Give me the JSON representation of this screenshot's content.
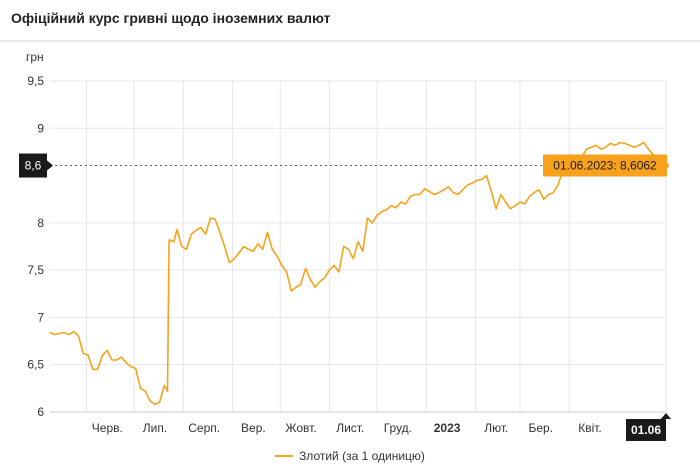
{
  "page": {
    "title": "Офіційний курс гривні щодо іноземних валют"
  },
  "chart_data": {
    "type": "line",
    "ylabel": "грн",
    "ylim": [
      6,
      9.5
    ],
    "y_ticks": [
      {
        "value": 6,
        "label": "6"
      },
      {
        "value": 6.5,
        "label": "6,5"
      },
      {
        "value": 7,
        "label": "7"
      },
      {
        "value": 7.5,
        "label": "7,5"
      },
      {
        "value": 8,
        "label": "8"
      },
      {
        "value": 9,
        "label": "9"
      },
      {
        "value": 9.5,
        "label": "9,5"
      }
    ],
    "x_range": [
      "2022-05-09",
      "2023-06-01"
    ],
    "x_ticks": [
      {
        "date": "2022-06-01",
        "label": "Черв."
      },
      {
        "date": "2022-07-01",
        "label": "Лип."
      },
      {
        "date": "2022-08-01",
        "label": "Серп."
      },
      {
        "date": "2022-09-01",
        "label": "Вер."
      },
      {
        "date": "2022-10-01",
        "label": "Жовт."
      },
      {
        "date": "2022-11-01",
        "label": "Лист."
      },
      {
        "date": "2022-12-01",
        "label": "Груд."
      },
      {
        "date": "2023-01-01",
        "label": "2023",
        "bold": true
      },
      {
        "date": "2023-02-01",
        "label": "Лют."
      },
      {
        "date": "2023-03-01",
        "label": "Бер."
      },
      {
        "date": "2023-04-01",
        "label": "Квіт."
      }
    ],
    "x_end_label": "01.06",
    "y_marker": {
      "value": 8.6062,
      "label": "8,6"
    },
    "tooltip": "01.06.2023: 8,6062",
    "colors": {
      "line": "#f7a21a",
      "marker_bg": "#1a1a1a",
      "tooltip_bg": "#f7a21a",
      "grid": "#e6e6e6"
    },
    "grid": true,
    "legend_position": "bottom-center",
    "series": [
      {
        "name": "Злотий (за 1 одиницю)",
        "points": [
          [
            "2022-05-09",
            6.84
          ],
          [
            "2022-05-12",
            6.82
          ],
          [
            "2022-05-15",
            6.83
          ],
          [
            "2022-05-18",
            6.84
          ],
          [
            "2022-05-21",
            6.82
          ],
          [
            "2022-05-24",
            6.85
          ],
          [
            "2022-05-27",
            6.8
          ],
          [
            "2022-05-30",
            6.62
          ],
          [
            "2022-06-02",
            6.6
          ],
          [
            "2022-06-05",
            6.45
          ],
          [
            "2022-06-08",
            6.45
          ],
          [
            "2022-06-11",
            6.6
          ],
          [
            "2022-06-14",
            6.65
          ],
          [
            "2022-06-17",
            6.55
          ],
          [
            "2022-06-20",
            6.55
          ],
          [
            "2022-06-23",
            6.58
          ],
          [
            "2022-06-26",
            6.52
          ],
          [
            "2022-06-29",
            6.48
          ],
          [
            "2022-07-02",
            6.46
          ],
          [
            "2022-07-05",
            6.25
          ],
          [
            "2022-07-08",
            6.22
          ],
          [
            "2022-07-11",
            6.12
          ],
          [
            "2022-07-14",
            6.08
          ],
          [
            "2022-07-17",
            6.1
          ],
          [
            "2022-07-20",
            6.28
          ],
          [
            "2022-07-22",
            6.22
          ],
          [
            "2022-07-23",
            7.82
          ],
          [
            "2022-07-26",
            7.8
          ],
          [
            "2022-07-28",
            7.93
          ],
          [
            "2022-07-31",
            7.75
          ],
          [
            "2022-08-03",
            7.72
          ],
          [
            "2022-08-06",
            7.88
          ],
          [
            "2022-08-09",
            7.92
          ],
          [
            "2022-08-12",
            7.95
          ],
          [
            "2022-08-15",
            7.88
          ],
          [
            "2022-08-18",
            8.05
          ],
          [
            "2022-08-21",
            8.04
          ],
          [
            "2022-08-24",
            7.9
          ],
          [
            "2022-08-27",
            7.75
          ],
          [
            "2022-08-30",
            7.58
          ],
          [
            "2022-09-02",
            7.62
          ],
          [
            "2022-09-05",
            7.68
          ],
          [
            "2022-09-08",
            7.75
          ],
          [
            "2022-09-11",
            7.72
          ],
          [
            "2022-09-14",
            7.7
          ],
          [
            "2022-09-17",
            7.78
          ],
          [
            "2022-09-20",
            7.72
          ],
          [
            "2022-09-23",
            7.9
          ],
          [
            "2022-09-26",
            7.72
          ],
          [
            "2022-09-29",
            7.65
          ],
          [
            "2022-10-02",
            7.55
          ],
          [
            "2022-10-05",
            7.48
          ],
          [
            "2022-10-08",
            7.28
          ],
          [
            "2022-10-11",
            7.32
          ],
          [
            "2022-10-14",
            7.35
          ],
          [
            "2022-10-17",
            7.52
          ],
          [
            "2022-10-20",
            7.4
          ],
          [
            "2022-10-23",
            7.32
          ],
          [
            "2022-10-26",
            7.38
          ],
          [
            "2022-10-29",
            7.42
          ],
          [
            "2022-11-01",
            7.5
          ],
          [
            "2022-11-04",
            7.55
          ],
          [
            "2022-11-07",
            7.48
          ],
          [
            "2022-11-10",
            7.75
          ],
          [
            "2022-11-13",
            7.72
          ],
          [
            "2022-11-16",
            7.62
          ],
          [
            "2022-11-19",
            7.8
          ],
          [
            "2022-11-22",
            7.7
          ],
          [
            "2022-11-25",
            8.05
          ],
          [
            "2022-11-28",
            8.0
          ],
          [
            "2022-12-01",
            8.08
          ],
          [
            "2022-12-04",
            8.12
          ],
          [
            "2022-12-07",
            8.14
          ],
          [
            "2022-12-10",
            8.18
          ],
          [
            "2022-12-13",
            8.16
          ],
          [
            "2022-12-16",
            8.22
          ],
          [
            "2022-12-19",
            8.2
          ],
          [
            "2022-12-22",
            8.28
          ],
          [
            "2022-12-25",
            8.3
          ],
          [
            "2022-12-28",
            8.3
          ],
          [
            "2022-12-31",
            8.36
          ],
          [
            "2023-01-03",
            8.33
          ],
          [
            "2023-01-06",
            8.3
          ],
          [
            "2023-01-09",
            8.32
          ],
          [
            "2023-01-12",
            8.35
          ],
          [
            "2023-01-15",
            8.38
          ],
          [
            "2023-01-18",
            8.32
          ],
          [
            "2023-01-21",
            8.3
          ],
          [
            "2023-01-24",
            8.35
          ],
          [
            "2023-01-27",
            8.4
          ],
          [
            "2023-01-30",
            8.42
          ],
          [
            "2023-02-02",
            8.45
          ],
          [
            "2023-02-05",
            8.46
          ],
          [
            "2023-02-08",
            8.5
          ],
          [
            "2023-02-11",
            8.33
          ],
          [
            "2023-02-14",
            8.15
          ],
          [
            "2023-02-17",
            8.3
          ],
          [
            "2023-02-20",
            8.22
          ],
          [
            "2023-02-23",
            8.15
          ],
          [
            "2023-02-26",
            8.18
          ],
          [
            "2023-03-01",
            8.22
          ],
          [
            "2023-03-04",
            8.2
          ],
          [
            "2023-03-07",
            8.28
          ],
          [
            "2023-03-10",
            8.32
          ],
          [
            "2023-03-13",
            8.35
          ],
          [
            "2023-03-16",
            8.25
          ],
          [
            "2023-03-19",
            8.3
          ],
          [
            "2023-03-22",
            8.32
          ],
          [
            "2023-03-25",
            8.4
          ],
          [
            "2023-03-28",
            8.55
          ],
          [
            "2023-03-31",
            8.62
          ],
          [
            "2023-04-03",
            8.62
          ],
          [
            "2023-04-06",
            8.65
          ],
          [
            "2023-04-09",
            8.7
          ],
          [
            "2023-04-12",
            8.78
          ],
          [
            "2023-04-15",
            8.8
          ],
          [
            "2023-04-18",
            8.82
          ],
          [
            "2023-04-21",
            8.78
          ],
          [
            "2023-04-24",
            8.8
          ],
          [
            "2023-04-27",
            8.84
          ],
          [
            "2023-04-30",
            8.82
          ],
          [
            "2023-05-03",
            8.85
          ],
          [
            "2023-05-06",
            8.84
          ],
          [
            "2023-05-09",
            8.82
          ],
          [
            "2023-05-12",
            8.8
          ],
          [
            "2023-05-15",
            8.82
          ],
          [
            "2023-05-18",
            8.85
          ],
          [
            "2023-05-21",
            8.78
          ],
          [
            "2023-05-24",
            8.72
          ],
          [
            "2023-05-27",
            8.7
          ],
          [
            "2023-05-30",
            8.65
          ],
          [
            "2023-06-01",
            8.6062
          ]
        ]
      }
    ]
  },
  "legend": {
    "label": "Злотий (за 1 одиницю)"
  }
}
